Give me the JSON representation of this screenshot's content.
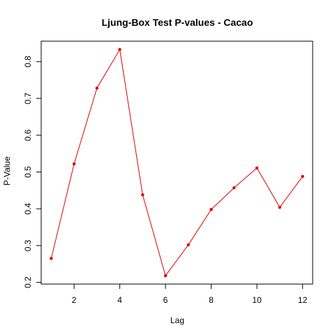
{
  "chart_data": {
    "type": "line",
    "title": "Ljung-Box Test P-values - Cacao",
    "xlabel": "Lag",
    "ylabel": "P-Value",
    "x": [
      1,
      2,
      3,
      4,
      5,
      6,
      7,
      8,
      9,
      10,
      11,
      12
    ],
    "series": [
      {
        "values": [
          0.265,
          0.522,
          0.728,
          0.833,
          0.438,
          0.218,
          0.302,
          0.398,
          0.457,
          0.511,
          0.404,
          0.488
        ],
        "color": "#e00000"
      }
    ],
    "xlim": [
      0.56,
      12.44
    ],
    "ylim": [
      0.1954,
      0.8556
    ],
    "x_ticks": [
      2,
      4,
      6,
      8,
      10,
      12
    ],
    "y_ticks": [
      0.2,
      0.3,
      0.4,
      0.5,
      0.6,
      0.7,
      0.8
    ],
    "x_tick_labels": [
      "2",
      "4",
      "6",
      "8",
      "10",
      "12"
    ],
    "y_tick_labels": [
      "0.2",
      "0.3",
      "0.4",
      "0.5",
      "0.6",
      "0.7",
      "0.8"
    ],
    "grid": false,
    "markers": true
  }
}
